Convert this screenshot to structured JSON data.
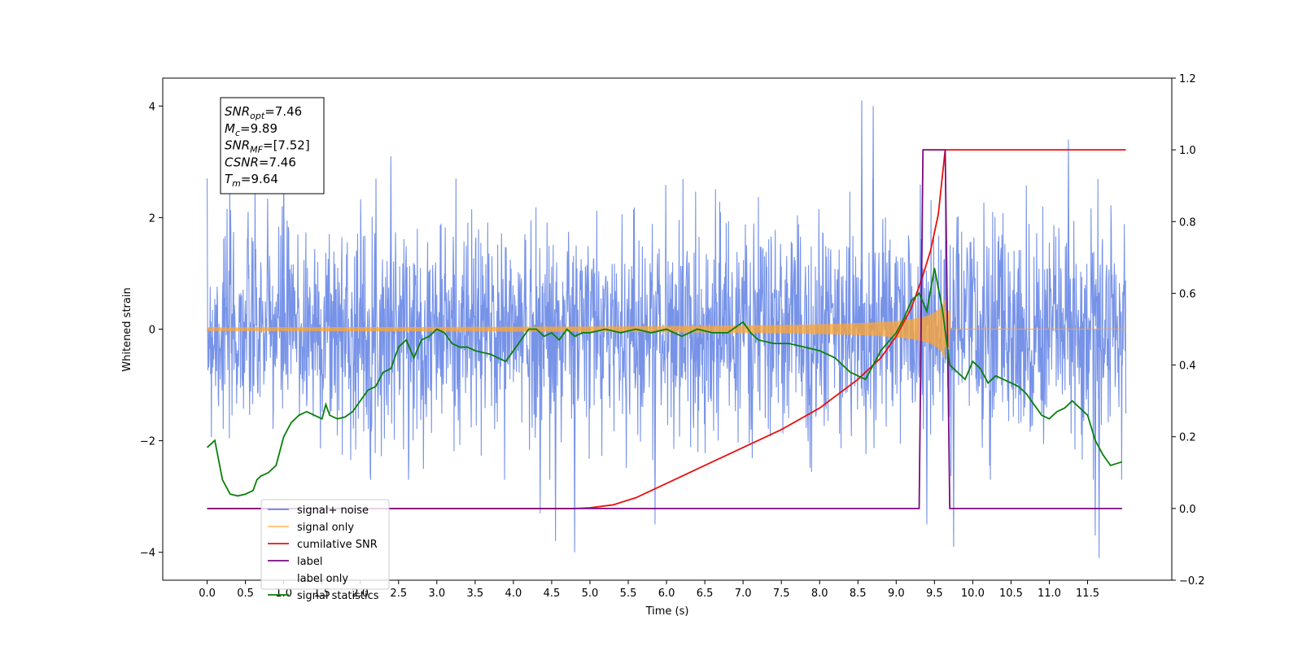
{
  "chart_data": {
    "type": "line",
    "xlabel": "Time (s)",
    "ylabel": "Whitened strain",
    "xlim": [
      -0.58,
      12.6
    ],
    "ylim": [
      -4.5,
      4.5
    ],
    "y2lim": [
      -0.2,
      1.2
    ],
    "grid": false,
    "legend_placement": "bottom-left",
    "x_ticks": [
      "0.0",
      "0.5",
      "1.0",
      "1.5",
      "2.0",
      "2.5",
      "3.0",
      "3.5",
      "4.0",
      "4.5",
      "5.0",
      "5.5",
      "6.0",
      "6.5",
      "7.0",
      "7.5",
      "8.0",
      "8.5",
      "9.0",
      "9.5",
      "10.0",
      "10.5",
      "11.0",
      "11.5"
    ],
    "y_ticks": [
      "4",
      "2",
      "0",
      "−2",
      "−4"
    ],
    "y2_ticks": [
      "1.2",
      "1.0",
      "0.8",
      "0.6",
      "0.4",
      "0.2",
      "0.0",
      "−0.2"
    ],
    "annotation": [
      {
        "base": "SNR",
        "sub": "opt",
        "value": "=7.46"
      },
      {
        "base": "M",
        "sub": "c",
        "value": "=9.89"
      },
      {
        "base": "SNR",
        "sub": "MF",
        "value": "=[7.52]"
      },
      {
        "base": "CSNR",
        "sub": "",
        "value": "=7.46"
      },
      {
        "base": "T",
        "sub": "m",
        "value": "=9.64"
      }
    ],
    "series": [
      {
        "name": "signal+ noise",
        "color": "#6b8ae6",
        "axis": "left",
        "kind": "noise",
        "x_range": [
          0,
          12.0
        ],
        "typical_abs_max": 2.5,
        "peaks": [
          [
            1.0,
            2.9
          ],
          [
            2.4,
            3.1
          ],
          [
            4.35,
            -3.3
          ],
          [
            4.55,
            -3.8
          ],
          [
            4.8,
            -4.0
          ],
          [
            5.85,
            -3.5
          ],
          [
            8.55,
            4.1
          ],
          [
            8.7,
            4.0
          ],
          [
            9.4,
            -3.5
          ],
          [
            9.75,
            -3.9
          ],
          [
            11.25,
            3.4
          ],
          [
            11.65,
            -4.1
          ],
          [
            11.6,
            -3.7
          ]
        ]
      },
      {
        "name": "signal only",
        "color": "#ffa530",
        "axis": "left",
        "kind": "chirp",
        "x_range": [
          0,
          12.0
        ],
        "merger_time": 9.64,
        "peak_amplitude": 0.55
      },
      {
        "name": "cumilative SNR",
        "color": "#e8100e",
        "axis": "right",
        "x": [
          0,
          4.8,
          5.0,
          5.3,
          5.6,
          6.0,
          6.5,
          7.0,
          7.5,
          8.0,
          8.5,
          8.8,
          9.0,
          9.2,
          9.35,
          9.45,
          9.55,
          9.64,
          12.0
        ],
        "values": [
          0,
          0,
          0.002,
          0.01,
          0.03,
          0.07,
          0.12,
          0.17,
          0.22,
          0.28,
          0.36,
          0.42,
          0.48,
          0.56,
          0.65,
          0.72,
          0.82,
          1.0,
          1.0
        ]
      },
      {
        "name": "label",
        "color": "#7b0a7e",
        "axis": "right",
        "x": [
          0,
          9.3,
          9.35,
          9.64,
          9.7,
          11.95
        ],
        "values": [
          0,
          0,
          1,
          1,
          0,
          0
        ]
      },
      {
        "name": "label only",
        "color": "#ffffff",
        "axis": "right",
        "x": [],
        "values": []
      },
      {
        "name": "signal statistics",
        "color": "#0a800a",
        "axis": "right",
        "x": [
          0,
          0.1,
          0.2,
          0.3,
          0.4,
          0.5,
          0.6,
          0.65,
          0.7,
          0.8,
          0.9,
          1.0,
          1.1,
          1.2,
          1.3,
          1.4,
          1.5,
          1.55,
          1.6,
          1.7,
          1.8,
          1.9,
          2.0,
          2.1,
          2.2,
          2.3,
          2.4,
          2.5,
          2.6,
          2.7,
          2.8,
          2.9,
          3.0,
          3.1,
          3.2,
          3.3,
          3.4,
          3.5,
          3.7,
          3.9,
          4.0,
          4.1,
          4.2,
          4.3,
          4.4,
          4.5,
          4.6,
          4.7,
          4.8,
          4.9,
          5.0,
          5.2,
          5.4,
          5.6,
          5.8,
          6.0,
          6.2,
          6.4,
          6.6,
          6.8,
          7.0,
          7.1,
          7.2,
          7.4,
          7.6,
          7.8,
          8.0,
          8.2,
          8.4,
          8.6,
          8.8,
          9.0,
          9.1,
          9.2,
          9.3,
          9.4,
          9.5,
          9.6,
          9.7,
          9.8,
          9.9,
          10.0,
          10.1,
          10.2,
          10.3,
          10.4,
          10.5,
          10.6,
          10.7,
          10.8,
          10.9,
          11.0,
          11.1,
          11.2,
          11.3,
          11.4,
          11.5,
          11.6,
          11.7,
          11.8,
          11.95
        ],
        "values": [
          0.17,
          0.19,
          0.08,
          0.04,
          0.035,
          0.04,
          0.05,
          0.08,
          0.09,
          0.1,
          0.12,
          0.2,
          0.24,
          0.26,
          0.27,
          0.26,
          0.25,
          0.29,
          0.26,
          0.25,
          0.255,
          0.27,
          0.3,
          0.33,
          0.34,
          0.38,
          0.39,
          0.45,
          0.47,
          0.42,
          0.47,
          0.48,
          0.5,
          0.49,
          0.46,
          0.45,
          0.45,
          0.44,
          0.43,
          0.41,
          0.44,
          0.47,
          0.5,
          0.5,
          0.48,
          0.49,
          0.47,
          0.5,
          0.48,
          0.49,
          0.49,
          0.5,
          0.49,
          0.5,
          0.49,
          0.5,
          0.48,
          0.5,
          0.49,
          0.49,
          0.52,
          0.49,
          0.47,
          0.46,
          0.46,
          0.45,
          0.44,
          0.42,
          0.38,
          0.36,
          0.44,
          0.49,
          0.53,
          0.58,
          0.6,
          0.55,
          0.67,
          0.56,
          0.4,
          0.38,
          0.36,
          0.41,
          0.39,
          0.35,
          0.37,
          0.36,
          0.35,
          0.34,
          0.32,
          0.29,
          0.26,
          0.25,
          0.27,
          0.28,
          0.3,
          0.28,
          0.26,
          0.19,
          0.15,
          0.12,
          0.13
        ]
      }
    ]
  }
}
